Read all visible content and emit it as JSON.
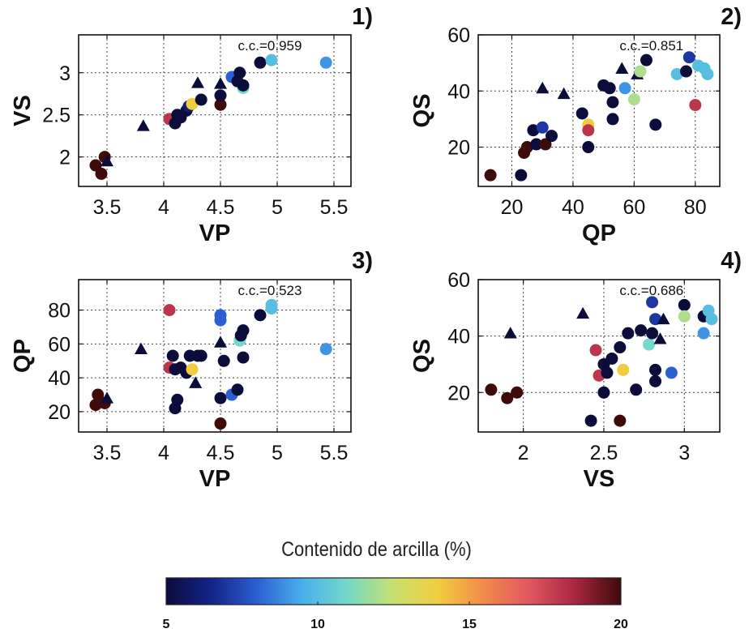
{
  "chart_data": [
    {
      "type": "scatter",
      "panel_label": "1)",
      "annotation": "c.c.=0.959",
      "xlabel": "VP",
      "ylabel": "VS",
      "xlim": [
        3.25,
        5.65
      ],
      "ylim": [
        1.65,
        3.45
      ],
      "xticks": [
        "3.5",
        "4",
        "4.5",
        "5",
        "5.5"
      ],
      "xtick_values": [
        3.5,
        4,
        4.5,
        5,
        5.5
      ],
      "yticks": [
        "2",
        "2.5",
        "3"
      ],
      "ytick_values": [
        2,
        2.5,
        3
      ],
      "grid": true,
      "points": [
        {
          "x": 3.4,
          "y": 1.9,
          "c": 20
        },
        {
          "x": 3.45,
          "y": 1.8,
          "c": 20
        },
        {
          "x": 3.48,
          "y": 2.0,
          "c": 20
        },
        {
          "x": 3.5,
          "y": 1.95,
          "c": 5,
          "m": "tri"
        },
        {
          "x": 3.82,
          "y": 2.37,
          "c": 5,
          "m": "tri"
        },
        {
          "x": 4.05,
          "y": 2.45,
          "c": 18
        },
        {
          "x": 4.1,
          "y": 2.4,
          "c": 5
        },
        {
          "x": 4.12,
          "y": 2.5,
          "c": 5
        },
        {
          "x": 4.15,
          "y": 2.47,
          "c": 5
        },
        {
          "x": 4.2,
          "y": 2.55,
          "c": 5
        },
        {
          "x": 4.22,
          "y": 2.6,
          "c": 6
        },
        {
          "x": 4.25,
          "y": 2.63,
          "c": 14
        },
        {
          "x": 4.3,
          "y": 2.88,
          "c": 5,
          "m": "tri"
        },
        {
          "x": 4.33,
          "y": 2.68,
          "c": 5
        },
        {
          "x": 4.5,
          "y": 2.62,
          "c": 20
        },
        {
          "x": 4.5,
          "y": 2.87,
          "c": 5,
          "m": "tri"
        },
        {
          "x": 4.5,
          "y": 2.73,
          "c": 5
        },
        {
          "x": 4.6,
          "y": 2.95,
          "c": 8
        },
        {
          "x": 4.65,
          "y": 2.9,
          "c": 5
        },
        {
          "x": 4.67,
          "y": 3.0,
          "c": 5
        },
        {
          "x": 4.7,
          "y": 2.82,
          "c": 11
        },
        {
          "x": 4.7,
          "y": 2.85,
          "c": 5
        },
        {
          "x": 4.85,
          "y": 3.12,
          "c": 5
        },
        {
          "x": 4.95,
          "y": 3.15,
          "c": 10
        },
        {
          "x": 5.43,
          "y": 3.12,
          "c": 9
        }
      ]
    },
    {
      "type": "scatter",
      "panel_label": "2)",
      "annotation": "c.c.=0.851",
      "xlabel": "QP",
      "ylabel": "QS",
      "xlim": [
        9,
        88
      ],
      "ylim": [
        6,
        60
      ],
      "xticks": [
        "20",
        "40",
        "60",
        "80"
      ],
      "xtick_values": [
        20,
        40,
        60,
        80
      ],
      "yticks": [
        "20",
        "40",
        "60"
      ],
      "ytick_values": [
        20,
        40,
        60
      ],
      "grid": true,
      "points": [
        {
          "x": 13,
          "y": 10,
          "c": 20
        },
        {
          "x": 23,
          "y": 10,
          "c": 5
        },
        {
          "x": 24,
          "y": 18,
          "c": 20
        },
        {
          "x": 25,
          "y": 20,
          "c": 20
        },
        {
          "x": 27,
          "y": 26,
          "c": 5
        },
        {
          "x": 28,
          "y": 21,
          "c": 5
        },
        {
          "x": 30,
          "y": 41,
          "c": 5,
          "m": "tri"
        },
        {
          "x": 30,
          "y": 27,
          "c": 7
        },
        {
          "x": 31,
          "y": 21,
          "c": 20
        },
        {
          "x": 33,
          "y": 24,
          "c": 5
        },
        {
          "x": 37,
          "y": 39,
          "c": 5,
          "m": "tri"
        },
        {
          "x": 43,
          "y": 32,
          "c": 5
        },
        {
          "x": 45,
          "y": 28,
          "c": 14
        },
        {
          "x": 45,
          "y": 26,
          "c": 18
        },
        {
          "x": 45,
          "y": 20,
          "c": 5
        },
        {
          "x": 50,
          "y": 42,
          "c": 5
        },
        {
          "x": 52,
          "y": 41,
          "c": 5
        },
        {
          "x": 53,
          "y": 36,
          "c": 5
        },
        {
          "x": 53,
          "y": 30,
          "c": 5
        },
        {
          "x": 56,
          "y": 48,
          "c": 5,
          "m": "tri"
        },
        {
          "x": 57,
          "y": 41,
          "c": 9
        },
        {
          "x": 60,
          "y": 37,
          "c": 12
        },
        {
          "x": 61,
          "y": 46,
          "c": 5,
          "m": "tri"
        },
        {
          "x": 62,
          "y": 47,
          "c": 12
        },
        {
          "x": 64,
          "y": 51,
          "c": 5
        },
        {
          "x": 67,
          "y": 28,
          "c": 5
        },
        {
          "x": 74,
          "y": 46,
          "c": 10
        },
        {
          "x": 77,
          "y": 47,
          "c": 5
        },
        {
          "x": 78,
          "y": 52,
          "c": 7
        },
        {
          "x": 80,
          "y": 35,
          "c": 18
        },
        {
          "x": 81,
          "y": 49,
          "c": 10
        },
        {
          "x": 83,
          "y": 48,
          "c": 10
        },
        {
          "x": 84,
          "y": 46,
          "c": 10
        }
      ]
    },
    {
      "type": "scatter",
      "panel_label": "3)",
      "annotation": "c.c.=0.523",
      "xlabel": "VP",
      "ylabel": "QP",
      "xlim": [
        3.25,
        5.65
      ],
      "ylim": [
        8,
        98
      ],
      "xticks": [
        "3.5",
        "4",
        "4.5",
        "5",
        "5.5"
      ],
      "xtick_values": [
        3.5,
        4,
        4.5,
        5,
        5.5
      ],
      "yticks": [
        "20",
        "40",
        "60",
        "80"
      ],
      "ytick_values": [
        20,
        40,
        60,
        80
      ],
      "grid": true,
      "points": [
        {
          "x": 3.4,
          "y": 24,
          "c": 20
        },
        {
          "x": 3.42,
          "y": 30,
          "c": 20
        },
        {
          "x": 3.48,
          "y": 25,
          "c": 20
        },
        {
          "x": 3.5,
          "y": 28,
          "c": 5,
          "m": "tri"
        },
        {
          "x": 3.8,
          "y": 57,
          "c": 5,
          "m": "tri"
        },
        {
          "x": 4.05,
          "y": 80,
          "c": 18
        },
        {
          "x": 4.05,
          "y": 46,
          "c": 18
        },
        {
          "x": 4.08,
          "y": 53,
          "c": 5
        },
        {
          "x": 4.1,
          "y": 45,
          "c": 5
        },
        {
          "x": 4.1,
          "y": 22,
          "c": 5
        },
        {
          "x": 4.12,
          "y": 27,
          "c": 5
        },
        {
          "x": 4.15,
          "y": 46,
          "c": 5
        },
        {
          "x": 4.2,
          "y": 43,
          "c": 5
        },
        {
          "x": 4.23,
          "y": 53,
          "c": 5
        },
        {
          "x": 4.25,
          "y": 45,
          "c": 14
        },
        {
          "x": 4.28,
          "y": 37,
          "c": 5,
          "m": "tri"
        },
        {
          "x": 4.3,
          "y": 53,
          "c": 5
        },
        {
          "x": 4.33,
          "y": 53,
          "c": 5
        },
        {
          "x": 4.5,
          "y": 77,
          "c": 8
        },
        {
          "x": 4.5,
          "y": 74,
          "c": 8
        },
        {
          "x": 4.5,
          "y": 61,
          "c": 5,
          "m": "tri"
        },
        {
          "x": 4.5,
          "y": 28,
          "c": 5
        },
        {
          "x": 4.5,
          "y": 13,
          "c": 20
        },
        {
          "x": 4.53,
          "y": 50,
          "c": 5
        },
        {
          "x": 4.6,
          "y": 30,
          "c": 8
        },
        {
          "x": 4.65,
          "y": 33,
          "c": 5
        },
        {
          "x": 4.67,
          "y": 62,
          "c": 11
        },
        {
          "x": 4.68,
          "y": 65,
          "c": 5
        },
        {
          "x": 4.7,
          "y": 68,
          "c": 5
        },
        {
          "x": 4.7,
          "y": 52,
          "c": 5
        },
        {
          "x": 4.85,
          "y": 77,
          "c": 5
        },
        {
          "x": 4.95,
          "y": 83,
          "c": 10
        },
        {
          "x": 4.95,
          "y": 81,
          "c": 10
        },
        {
          "x": 5.43,
          "y": 57,
          "c": 9
        }
      ]
    },
    {
      "type": "scatter",
      "panel_label": "4)",
      "annotation": "c.c.=0.686",
      "xlabel": "VS",
      "ylabel": "QS",
      "xlim": [
        1.72,
        3.22
      ],
      "ylim": [
        6,
        60
      ],
      "xticks": [
        "2",
        "2.5",
        "3"
      ],
      "xtick_values": [
        2,
        2.5,
        3
      ],
      "yticks": [
        "20",
        "40",
        "60"
      ],
      "ytick_values": [
        20,
        40,
        60
      ],
      "grid": true,
      "points": [
        {
          "x": 1.8,
          "y": 21,
          "c": 20
        },
        {
          "x": 1.9,
          "y": 18,
          "c": 20
        },
        {
          "x": 1.96,
          "y": 20,
          "c": 20
        },
        {
          "x": 1.92,
          "y": 41,
          "c": 5,
          "m": "tri"
        },
        {
          "x": 2.37,
          "y": 48,
          "c": 5,
          "m": "tri"
        },
        {
          "x": 2.42,
          "y": 10,
          "c": 5
        },
        {
          "x": 2.45,
          "y": 35,
          "c": 18
        },
        {
          "x": 2.47,
          "y": 26,
          "c": 18
        },
        {
          "x": 2.5,
          "y": 30,
          "c": 5
        },
        {
          "x": 2.5,
          "y": 20,
          "c": 5
        },
        {
          "x": 2.52,
          "y": 27,
          "c": 5
        },
        {
          "x": 2.55,
          "y": 32,
          "c": 5
        },
        {
          "x": 2.6,
          "y": 10,
          "c": 20
        },
        {
          "x": 2.6,
          "y": 36,
          "c": 5
        },
        {
          "x": 2.62,
          "y": 28,
          "c": 14
        },
        {
          "x": 2.65,
          "y": 41,
          "c": 5
        },
        {
          "x": 2.7,
          "y": 21,
          "c": 5
        },
        {
          "x": 2.73,
          "y": 42,
          "c": 5
        },
        {
          "x": 2.78,
          "y": 37,
          "c": 11
        },
        {
          "x": 2.8,
          "y": 41,
          "c": 5
        },
        {
          "x": 2.8,
          "y": 52,
          "c": 7
        },
        {
          "x": 2.82,
          "y": 46,
          "c": 7
        },
        {
          "x": 2.82,
          "y": 28,
          "c": 5
        },
        {
          "x": 2.82,
          "y": 24,
          "c": 5
        },
        {
          "x": 2.85,
          "y": 39,
          "c": 5,
          "m": "tri"
        },
        {
          "x": 2.87,
          "y": 46,
          "c": 5,
          "m": "tri"
        },
        {
          "x": 2.92,
          "y": 27,
          "c": 8
        },
        {
          "x": 3.0,
          "y": 51,
          "c": 5
        },
        {
          "x": 3.0,
          "y": 47,
          "c": 12
        },
        {
          "x": 3.12,
          "y": 47,
          "c": 5
        },
        {
          "x": 3.12,
          "y": 41,
          "c": 9
        },
        {
          "x": 3.15,
          "y": 49,
          "c": 10
        },
        {
          "x": 3.17,
          "y": 46,
          "c": 10
        }
      ]
    }
  ],
  "colorbar": {
    "title": "Contenido de arcilla (%)",
    "ticks": [
      "5",
      "10",
      "15",
      "20"
    ],
    "tick_values": [
      5,
      10,
      15,
      20
    ],
    "range": [
      5,
      20
    ],
    "colors": [
      "#0b0c3a",
      "#14238a",
      "#2c5fd1",
      "#49b0ee",
      "#74d9c8",
      "#c8e070",
      "#f2cc3e",
      "#f2894b",
      "#e05660",
      "#a82642",
      "#3e0a0a"
    ]
  }
}
